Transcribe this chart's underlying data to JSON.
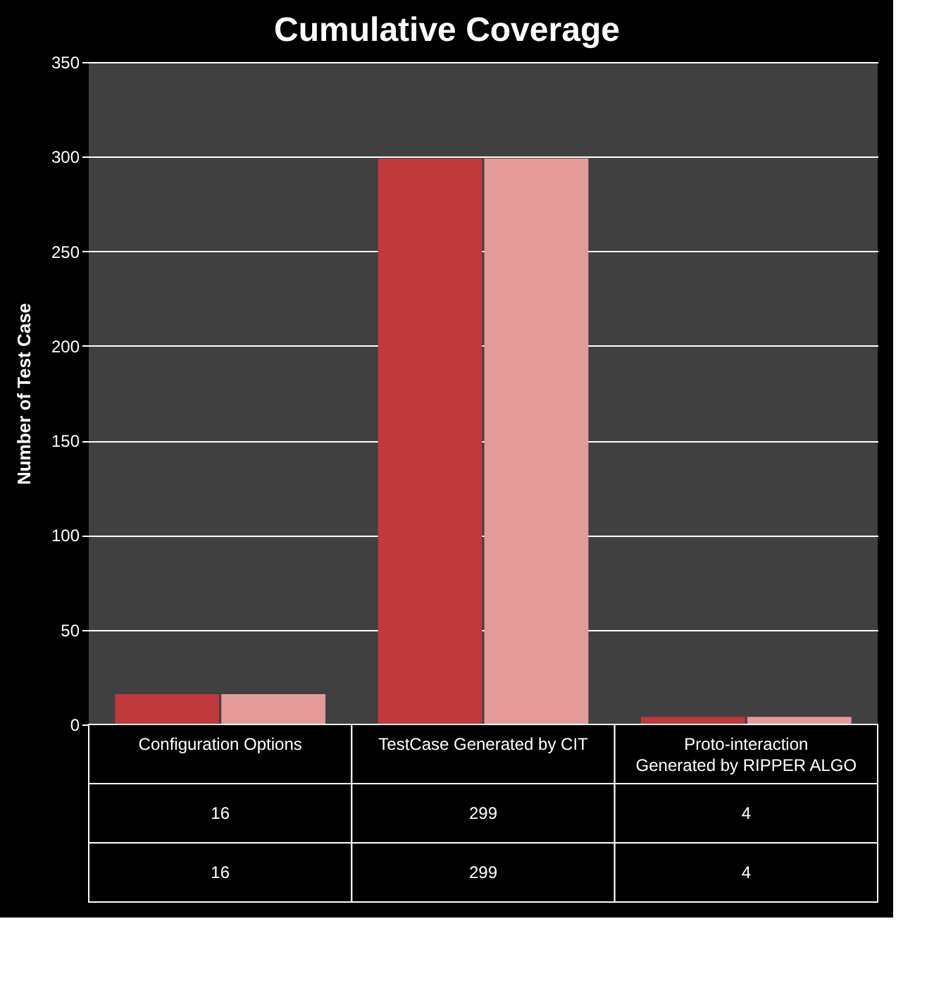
{
  "chart_data": {
    "type": "bar",
    "title": "Cumulative Coverage",
    "ylabel": "Number of Test Case",
    "categories": [
      "Configuration Options",
      "TestCase Generated by CIT",
      "Proto-interaction Generated by RIPPER ALGO"
    ],
    "series": [
      {
        "color": "#c0393b",
        "values": [
          16,
          299,
          4
        ]
      },
      {
        "color": "#e59a9a",
        "values": [
          16,
          299,
          4
        ]
      }
    ],
    "ylim": [
      0,
      350
    ],
    "yticks": [
      0,
      50,
      100,
      150,
      200,
      250,
      300,
      350
    ],
    "grid": "y",
    "legend": false,
    "data_labels": true
  }
}
